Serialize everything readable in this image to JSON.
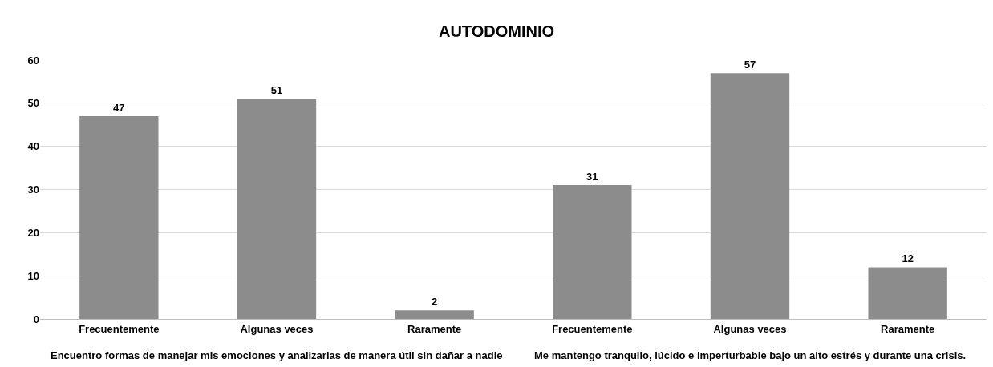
{
  "chart_data": {
    "type": "bar",
    "title": "AUTODOMINIO",
    "categories": [
      "Frecuentemente",
      "Algunas veces",
      "Raramente",
      "Frecuentemente",
      "Algunas veces",
      "Raramente"
    ],
    "values": [
      47,
      51,
      2,
      31,
      57,
      12
    ],
    "color": "#8c8c8c",
    "ylim": [
      0,
      60
    ],
    "yticks": [
      0,
      10,
      20,
      30,
      40,
      50,
      60
    ],
    "grid": "y",
    "data_labels": true,
    "annotations": [
      "Encuentro formas de manejar mis emociones y analizarlas de manera útil sin dañar a nadie",
      "Me mantengo tranquilo, lúcido e imperturbable bajo un alto estrés y durante una crisis."
    ]
  }
}
